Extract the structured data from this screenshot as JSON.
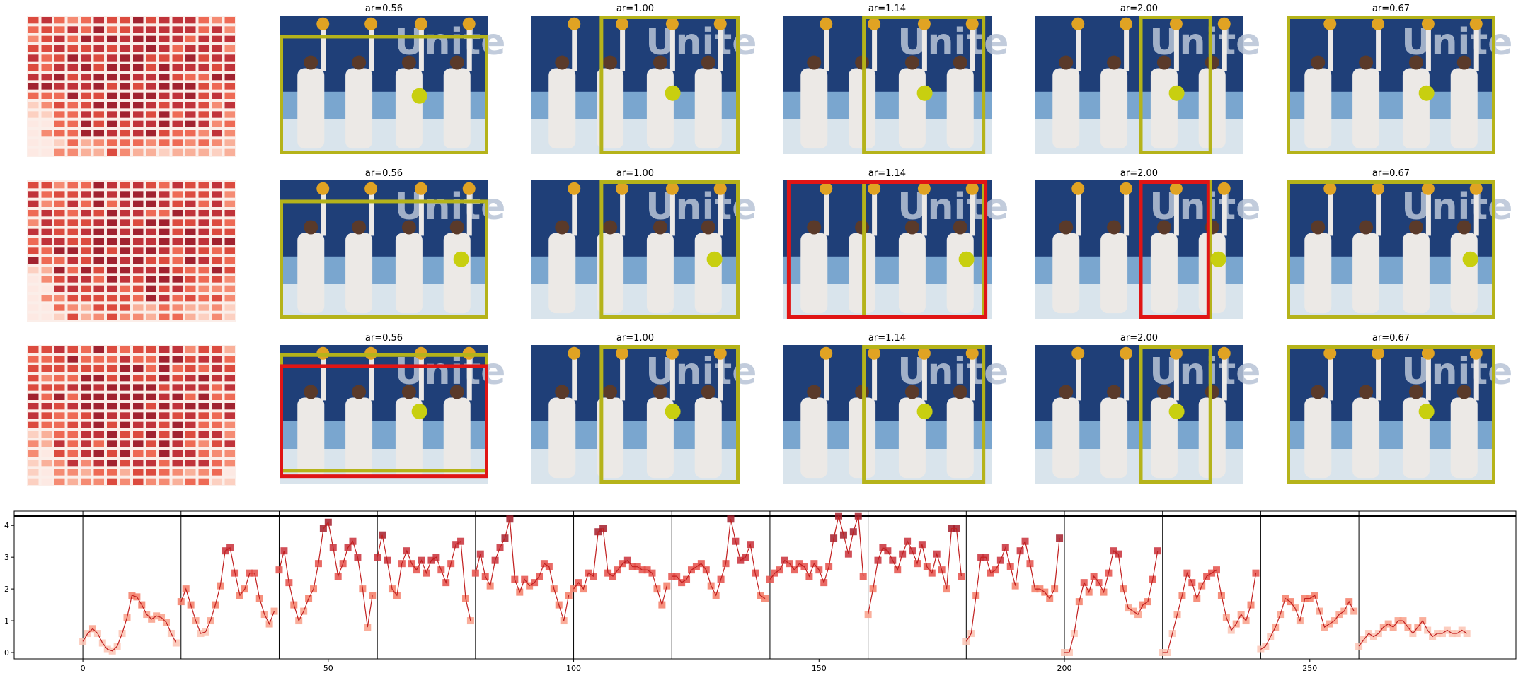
{
  "figure": {
    "rows": [
      {
        "titles": [
          "ar=0.56",
          "ar=1.00",
          "ar=1.14",
          "ar=2.00",
          "ar=0.67"
        ]
      },
      {
        "titles": [
          "ar=0.56",
          "ar=1.00",
          "ar=1.14",
          "ar=2.00",
          "ar=0.67"
        ]
      },
      {
        "titles": [
          "ar=0.56",
          "ar=1.00",
          "ar=1.14",
          "ar=2.00",
          "ar=0.67"
        ]
      }
    ],
    "colors": {
      "crop_box": "#b5b31a",
      "alt_box": "#e01515",
      "focus_dot": "#c8cf10",
      "line": "#c11f1f",
      "hline": "#000000"
    }
  },
  "chart_data": {
    "type": "line",
    "title": "",
    "xlabel": "",
    "ylabel": "",
    "xlim": [
      -14,
      292
    ],
    "ylim": [
      -0.2,
      4.45
    ],
    "xticks": [
      0,
      50,
      100,
      150,
      200,
      250
    ],
    "yticks": [
      0,
      1,
      2,
      3,
      4
    ],
    "grid": false,
    "threshold_line": 4.3,
    "segment_boundaries": [
      0,
      20,
      40,
      60,
      80,
      100,
      120,
      140,
      160,
      180,
      200,
      220,
      240,
      260
    ],
    "x_start": 0,
    "y": [
      0.35,
      0.6,
      0.75,
      0.6,
      0.3,
      0.1,
      0.05,
      0.2,
      0.6,
      1.1,
      1.8,
      1.75,
      1.5,
      1.2,
      1.05,
      1.15,
      1.1,
      0.95,
      0.6,
      0.3,
      1.6,
      2.0,
      1.5,
      1.0,
      0.6,
      0.65,
      1.0,
      1.5,
      2.1,
      3.2,
      3.3,
      2.5,
      1.8,
      2.0,
      2.5,
      2.5,
      1.7,
      1.2,
      0.9,
      1.3,
      2.6,
      3.2,
      2.2,
      1.5,
      1.0,
      1.3,
      1.7,
      2.0,
      2.8,
      3.9,
      4.1,
      3.3,
      2.4,
      2.8,
      3.3,
      3.5,
      3.0,
      2.0,
      0.8,
      1.8,
      3.0,
      3.7,
      2.9,
      2.0,
      1.8,
      2.8,
      3.2,
      2.8,
      2.6,
      2.9,
      2.5,
      2.9,
      3.0,
      2.6,
      2.2,
      2.8,
      3.4,
      3.5,
      1.7,
      1.0,
      2.5,
      3.1,
      2.4,
      2.1,
      2.9,
      3.3,
      3.6,
      4.2,
      2.3,
      1.9,
      2.3,
      2.1,
      2.2,
      2.4,
      2.8,
      2.7,
      2.0,
      1.5,
      1.0,
      1.8,
      2.0,
      2.2,
      2.0,
      2.5,
      2.4,
      3.8,
      3.9,
      2.5,
      2.4,
      2.6,
      2.8,
      2.9,
      2.7,
      2.7,
      2.6,
      2.6,
      2.5,
      2.0,
      1.5,
      2.1,
      2.4,
      2.4,
      2.2,
      2.3,
      2.6,
      2.7,
      2.8,
      2.6,
      2.1,
      1.8,
      2.3,
      2.8,
      4.2,
      3.5,
      2.9,
      3.0,
      3.4,
      2.5,
      1.8,
      1.7,
      2.3,
      2.5,
      2.6,
      2.9,
      2.8,
      2.6,
      2.8,
      2.7,
      2.4,
      2.8,
      2.6,
      2.2,
      2.7,
      3.6,
      4.3,
      3.7,
      3.1,
      3.8,
      4.3,
      2.4,
      1.2,
      2.0,
      2.9,
      3.3,
      3.2,
      2.9,
      2.6,
      3.1,
      3.5,
      3.2,
      2.8,
      3.4,
      2.7,
      2.5,
      3.1,
      2.6,
      2.0,
      3.9,
      3.9,
      2.4,
      0.35,
      0.6,
      1.8,
      3.0,
      3.0,
      2.5,
      2.6,
      2.9,
      3.3,
      2.7,
      2.1,
      3.2,
      3.5,
      2.8,
      2.0,
      2.0,
      1.9,
      1.7,
      2.0,
      3.6,
      0.0,
      0.0,
      0.6,
      1.6,
      2.2,
      1.9,
      2.4,
      2.2,
      1.9,
      2.5,
      3.2,
      3.1,
      2.0,
      1.4,
      1.3,
      1.2,
      1.5,
      1.6,
      2.3,
      3.2,
      0.0,
      0.0,
      0.6,
      1.2,
      1.8,
      2.5,
      2.2,
      1.7,
      2.1,
      2.4,
      2.5,
      2.6,
      1.8,
      1.1,
      0.7,
      0.9,
      1.2,
      1.0,
      1.5,
      2.5,
      0.1,
      0.2,
      0.5,
      0.8,
      1.2,
      1.7,
      1.6,
      1.4,
      1.0,
      1.7,
      1.7,
      1.8,
      1.3,
      0.8,
      0.9,
      1.0,
      1.2,
      1.3,
      1.6,
      1.3,
      0.2,
      0.4,
      0.6,
      0.5,
      0.6,
      0.8,
      0.9,
      0.8,
      1.0,
      1.0,
      0.8,
      0.6,
      0.8,
      1.0,
      0.7,
      0.5,
      0.6,
      0.6,
      0.7,
      0.6,
      0.6,
      0.7,
      0.6
    ]
  }
}
